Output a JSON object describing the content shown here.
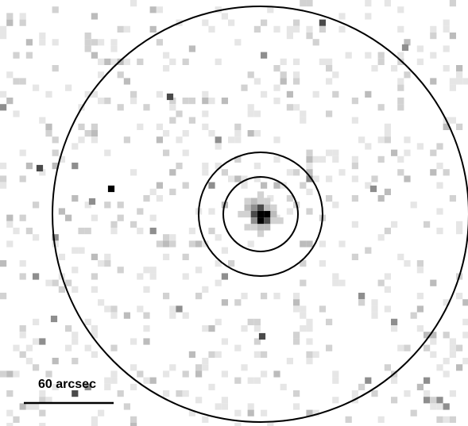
{
  "image": {
    "description_type": "x-ray-count-map",
    "background_color": "#ffffff",
    "ring_color": "#000000",
    "pixel_palette": [
      "#e6e6e6",
      "#d2d2d2",
      "#bcbcbc",
      "#8e8e8e",
      "#4a4a4a",
      "#000000"
    ]
  },
  "scale_bar": {
    "label": "60 arcsec"
  }
}
